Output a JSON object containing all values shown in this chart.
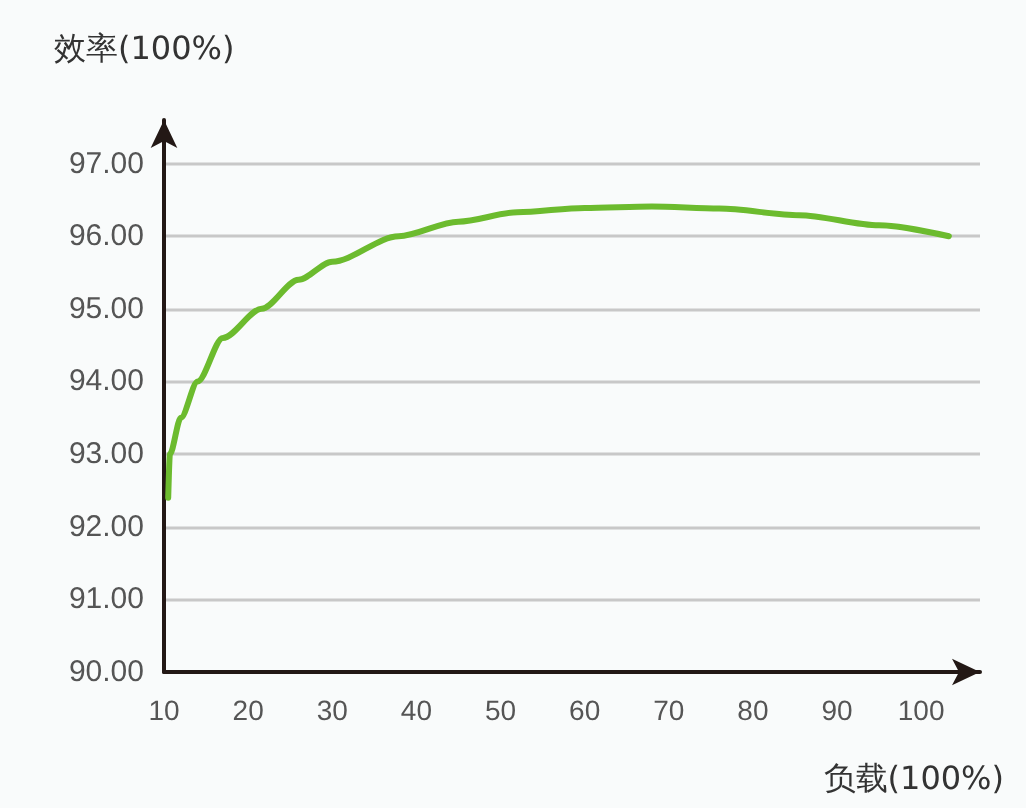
{
  "chart_data": {
    "type": "line",
    "xlabel": "负载(100%)",
    "ylabel": "效率(100%)",
    "x": [
      10.5,
      10.7,
      12,
      14,
      17,
      21.6,
      26,
      30,
      37.9,
      45,
      52,
      60,
      68,
      76,
      85.5,
      95,
      103.3
    ],
    "series": [
      {
        "color": "#6cbb2e",
        "values": [
          92.4,
          93.0,
          93.5,
          94.0,
          94.6,
          95.0,
          95.4,
          95.65,
          96.0,
          96.2,
          96.33,
          96.39,
          96.41,
          96.38,
          96.29,
          96.15,
          96.0
        ]
      }
    ],
    "xlim": [
      10,
      107
    ],
    "xticks": [
      10,
      20,
      30,
      40,
      50,
      60,
      70,
      80,
      90,
      100
    ],
    "ylim": [
      90,
      97.6
    ],
    "yticks": [
      {
        "value": 90,
        "label": "90.00"
      },
      {
        "value": 91,
        "label": "91.00"
      },
      {
        "value": 92,
        "label": "92.00"
      },
      {
        "value": 93,
        "label": "93.00"
      },
      {
        "value": 94,
        "label": "94.00"
      },
      {
        "value": 95,
        "label": "95.00"
      },
      {
        "value": 96,
        "label": "96.00"
      },
      {
        "value": 97,
        "label": "97.00"
      }
    ],
    "grid": "y",
    "marker": "none",
    "line_style": "solid"
  }
}
